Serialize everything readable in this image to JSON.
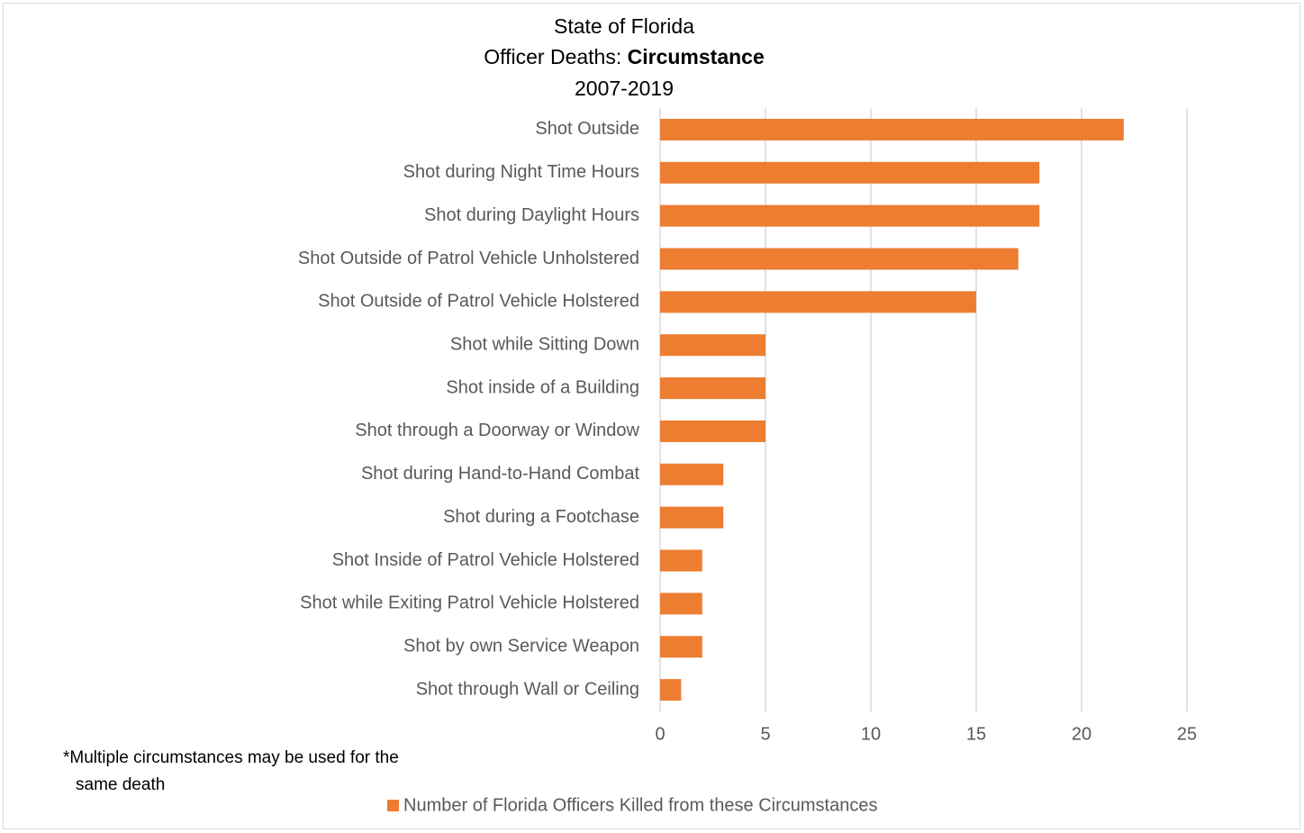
{
  "chart_data": {
    "type": "barh",
    "title": {
      "line1": "State of Florida",
      "line2_prefix": "Officer Deaths:",
      "line2_bold": "Circumstance",
      "line3": "2007-2019"
    },
    "categories": [
      "Shot Outside",
      "Shot during Night Time Hours",
      "Shot during Daylight Hours",
      "Shot Outside of Patrol Vehicle Unholstered",
      "Shot Outside of Patrol Vehicle Holstered",
      "Shot while Sitting Down",
      "Shot inside of a Building",
      "Shot through a Doorway or Window",
      "Shot during Hand-to-Hand Combat",
      "Shot during a Footchase",
      "Shot Inside of Patrol Vehicle Holstered",
      "Shot while Exiting Patrol Vehicle Holstered",
      "Shot by own Service Weapon",
      "Shot through Wall or Ceiling"
    ],
    "series": [
      {
        "name": "Number of Florida Officers Killed from these Circumstances",
        "color": "#ed7d31",
        "values": [
          22,
          18,
          18,
          17,
          15,
          5,
          5,
          5,
          3,
          3,
          2,
          2,
          2,
          1
        ]
      }
    ],
    "xlim": [
      0,
      25
    ],
    "xticks": [
      0,
      5,
      10,
      15,
      20,
      25
    ],
    "grid": true,
    "legend": "bottom",
    "footnote": [
      "*Multiple circumstances may be used  for the",
      "same death"
    ]
  }
}
